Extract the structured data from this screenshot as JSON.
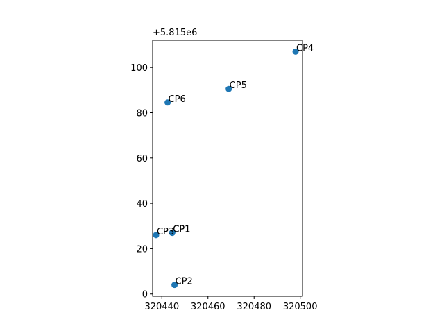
{
  "chart_data": {
    "type": "scatter",
    "title": "",
    "xlabel": "",
    "ylabel": "",
    "y_offset_text": "+5.815e6",
    "xlim": [
      320436,
      320501
    ],
    "ylim": [
      -1,
      112
    ],
    "x_ticks": [
      320440,
      320460,
      320480,
      320500
    ],
    "y_ticks": [
      0,
      20,
      40,
      60,
      80,
      100
    ],
    "grid": false,
    "marker_color": "#1f77b4",
    "points": [
      {
        "label": "CP1",
        "x": 320444.5,
        "y": 27.0
      },
      {
        "label": "CP1",
        "x": 320444.5,
        "y": 27.0
      },
      {
        "label": "CP2",
        "x": 320445.5,
        "y": 4.0
      },
      {
        "label": "CP3",
        "x": 320437.5,
        "y": 26.0
      },
      {
        "label": "CP4",
        "x": 320498.0,
        "y": 107.0
      },
      {
        "label": "CP5",
        "x": 320469.0,
        "y": 90.5
      },
      {
        "label": "CP6",
        "x": 320442.5,
        "y": 84.5
      }
    ]
  }
}
